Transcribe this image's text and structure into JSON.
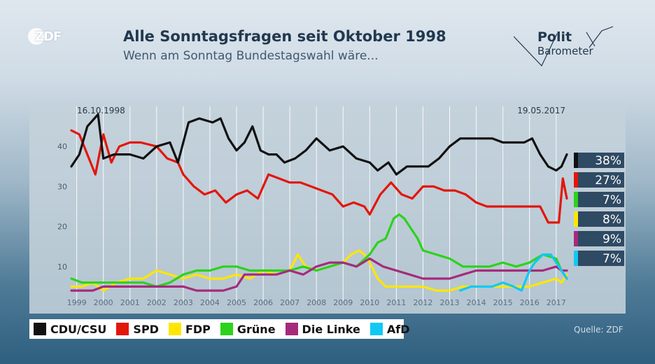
{
  "header": {
    "logo": "ZDF",
    "title": "Alle Sonntagsfragen seit Oktober 1998",
    "subtitle": "Wenn am Sonntag Bundestagswahl wäre...",
    "brand_line1": "Polit",
    "brand_line2": "Barometer"
  },
  "source": "Quelle: ZDF",
  "chart_data": {
    "type": "line",
    "title": "Alle Sonntagsfragen seit Oktober 1998",
    "subtitle": "Wenn am Sonntag Bundestagswahl wäre...",
    "start_label": "16.10.1998",
    "end_label": "19.05.2017",
    "xlim": [
      1998.8,
      2017.4
    ],
    "ylim": [
      0,
      50
    ],
    "yticks": [
      10,
      20,
      30,
      40
    ],
    "xticks": [
      "1999",
      "2000",
      "2001",
      "2002",
      "2003",
      "2004",
      "2005",
      "2006",
      "2007",
      "2008",
      "2009",
      "2010",
      "2011",
      "2012",
      "2013",
      "2014",
      "2015",
      "2016",
      "2017"
    ],
    "grid": "vertical",
    "legend_position": "bottom-left",
    "series": [
      {
        "name": "CDU/CSU",
        "color": "#111111",
        "last_label": "38%",
        "label_color": "#111111",
        "x": [
          1998.8,
          1999.1,
          1999.4,
          1999.8,
          2000.0,
          2000.4,
          2001.0,
          2001.5,
          2002.0,
          2002.5,
          2002.8,
          2003.2,
          2003.6,
          2004.1,
          2004.4,
          2004.7,
          2005.0,
          2005.3,
          2005.6,
          2005.9,
          2006.2,
          2006.5,
          2006.8,
          2007.2,
          2007.6,
          2008.0,
          2008.5,
          2009.0,
          2009.5,
          2010.0,
          2010.3,
          2010.7,
          2011.0,
          2011.4,
          2011.8,
          2012.2,
          2012.6,
          2013.0,
          2013.4,
          2013.8,
          2014.2,
          2014.6,
          2015.0,
          2015.5,
          2015.8,
          2016.1,
          2016.4,
          2016.7,
          2017.0,
          2017.2,
          2017.4
        ],
        "y": [
          35,
          38,
          45,
          48,
          37,
          38,
          38,
          37,
          40,
          41,
          36,
          46,
          47,
          46,
          47,
          42,
          39,
          41,
          45,
          39,
          38,
          38,
          36,
          37,
          39,
          42,
          39,
          40,
          37,
          36,
          34,
          36,
          33,
          35,
          35,
          35,
          37,
          40,
          42,
          42,
          42,
          42,
          41,
          41,
          41,
          42,
          38,
          35,
          34,
          35,
          38
        ]
      },
      {
        "name": "SPD",
        "color": "#e3160b",
        "last_label": "27%",
        "label_color": "#e3160b",
        "x": [
          1998.8,
          1999.1,
          1999.4,
          1999.7,
          2000.0,
          2000.3,
          2000.6,
          2001.0,
          2001.4,
          2002.0,
          2002.4,
          2002.8,
          2003.0,
          2003.4,
          2003.8,
          2004.2,
          2004.6,
          2005.0,
          2005.4,
          2005.8,
          2006.2,
          2006.6,
          2007.0,
          2007.4,
          2007.8,
          2008.2,
          2008.6,
          2009.0,
          2009.4,
          2009.8,
          2010.0,
          2010.4,
          2010.8,
          2011.2,
          2011.6,
          2012.0,
          2012.4,
          2012.8,
          2013.2,
          2013.6,
          2014.0,
          2014.4,
          2014.8,
          2015.2,
          2015.6,
          2016.0,
          2016.4,
          2016.7,
          2016.9,
          2017.1,
          2017.25,
          2017.4
        ],
        "y": [
          44,
          43,
          38,
          33,
          43,
          36,
          40,
          41,
          41,
          40,
          37,
          36,
          33,
          30,
          28,
          29,
          26,
          28,
          29,
          27,
          33,
          32,
          31,
          31,
          30,
          29,
          28,
          25,
          26,
          25,
          23,
          28,
          31,
          28,
          27,
          30,
          30,
          29,
          29,
          28,
          26,
          25,
          25,
          25,
          25,
          25,
          25,
          21,
          21,
          21,
          32,
          27
        ]
      },
      {
        "name": "FDP",
        "color": "#ffe600",
        "last_label": "8%",
        "label_color": "#ffe600",
        "x": [
          1998.8,
          1999.2,
          1999.6,
          2000.0,
          2000.5,
          2001.0,
          2001.5,
          2002.0,
          2002.5,
          2003.0,
          2003.5,
          2004.0,
          2004.5,
          2005.0,
          2005.5,
          2006.0,
          2006.5,
          2007.0,
          2007.3,
          2007.6,
          2008.0,
          2008.5,
          2009.0,
          2009.3,
          2009.6,
          2009.8,
          2010.0,
          2010.3,
          2010.6,
          2011.0,
          2011.5,
          2012.0,
          2012.5,
          2013.0,
          2013.5,
          2013.8,
          2014.2,
          2014.6,
          2015.0,
          2015.5,
          2016.0,
          2016.5,
          2017.0,
          2017.2,
          2017.4
        ],
        "y": [
          5,
          5,
          6,
          4,
          6,
          7,
          7,
          9,
          8,
          7,
          8,
          7,
          7,
          8,
          7,
          9,
          8,
          9,
          13,
          10,
          9,
          10,
          11,
          13,
          14,
          13,
          11,
          7,
          5,
          5,
          5,
          5,
          4,
          4,
          5,
          5,
          5,
          5,
          5,
          5,
          5,
          6,
          7,
          6,
          8
        ]
      },
      {
        "name": "Grüne",
        "color": "#2bd31a",
        "last_label": "7%",
        "label_color": "#2bd31a",
        "x": [
          1998.8,
          1999.2,
          1999.6,
          2000.0,
          2000.5,
          2001.0,
          2001.5,
          2002.0,
          2002.5,
          2003.0,
          2003.5,
          2004.0,
          2004.5,
          2005.0,
          2005.5,
          2006.0,
          2006.5,
          2007.0,
          2007.5,
          2008.0,
          2008.5,
          2009.0,
          2009.5,
          2010.0,
          2010.3,
          2010.6,
          2010.9,
          2011.1,
          2011.3,
          2011.5,
          2011.8,
          2012.0,
          2012.5,
          2013.0,
          2013.5,
          2014.0,
          2014.5,
          2015.0,
          2015.5,
          2016.0,
          2016.5,
          2017.0,
          2017.2,
          2017.4
        ],
        "y": [
          7,
          6,
          6,
          6,
          6,
          6,
          6,
          5,
          6,
          8,
          9,
          9,
          10,
          10,
          9,
          9,
          9,
          9,
          10,
          9,
          10,
          11,
          10,
          13,
          16,
          17,
          22,
          23,
          22,
          20,
          17,
          14,
          13,
          12,
          10,
          10,
          10,
          11,
          10,
          11,
          13,
          12,
          9,
          7
        ]
      },
      {
        "name": "Die Linke",
        "color": "#a62a7c",
        "last_label": "9%",
        "label_color": "#a62a7c",
        "x": [
          1998.8,
          1999.2,
          1999.6,
          2000.0,
          2000.5,
          2001.0,
          2001.5,
          2002.0,
          2002.5,
          2003.0,
          2003.5,
          2004.0,
          2004.5,
          2005.0,
          2005.3,
          2005.6,
          2006.0,
          2006.5,
          2007.0,
          2007.5,
          2008.0,
          2008.5,
          2009.0,
          2009.5,
          2010.0,
          2010.5,
          2011.0,
          2011.5,
          2012.0,
          2012.5,
          2013.0,
          2013.5,
          2014.0,
          2014.5,
          2015.0,
          2015.5,
          2016.0,
          2016.5,
          2017.0,
          2017.2,
          2017.4
        ],
        "y": [
          4,
          4,
          4,
          5,
          5,
          5,
          5,
          5,
          5,
          5,
          4,
          4,
          4,
          5,
          8,
          8,
          8,
          8,
          9,
          8,
          10,
          11,
          11,
          10,
          12,
          10,
          9,
          8,
          7,
          7,
          7,
          8,
          9,
          9,
          9,
          9,
          9,
          9,
          10,
          9,
          9
        ]
      },
      {
        "name": "AfD",
        "color": "#11c8f3",
        "last_label": "7%",
        "label_color": "#11c8f3",
        "x": [
          2013.4,
          2013.8,
          2014.2,
          2014.6,
          2015.0,
          2015.4,
          2015.7,
          2016.0,
          2016.2,
          2016.5,
          2016.8,
          2017.0,
          2017.2,
          2017.4
        ],
        "y": [
          4,
          5,
          5,
          5,
          6,
          5,
          4,
          9,
          11,
          13,
          13,
          11,
          9,
          7
        ]
      }
    ]
  }
}
